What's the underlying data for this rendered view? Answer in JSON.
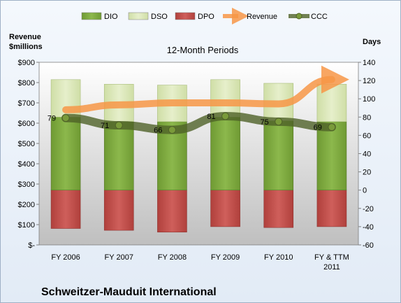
{
  "chart_data": {
    "type": "bar",
    "subtitle": "12-Month Periods",
    "company": "Schweitzer-Mauduit International",
    "categories": [
      [
        "FY 2006"
      ],
      [
        "FY 2007"
      ],
      [
        "FY 2008"
      ],
      [
        "FY 2009"
      ],
      [
        "FY 2010"
      ],
      [
        "FY & TTM",
        "2011"
      ]
    ],
    "left_axis": {
      "label": [
        "Revenue",
        "$millions"
      ],
      "ylim": [
        0,
        900
      ],
      "ticks": [
        0,
        100,
        200,
        300,
        400,
        500,
        600,
        700,
        800,
        900
      ],
      "tick_labels": [
        "$-",
        "$100",
        "$200",
        "$300",
        "$400",
        "$500",
        "$600",
        "$700",
        "$800",
        "$900"
      ]
    },
    "right_axis": {
      "label": "Days",
      "ylim": [
        -60,
        140
      ],
      "ticks": [
        -60,
        -40,
        -20,
        0,
        20,
        40,
        60,
        80,
        100,
        120,
        140
      ]
    },
    "series": [
      {
        "name": "DIO",
        "axis": "right",
        "values": [
          80,
          75,
          75,
          80,
          76,
          75
        ],
        "color": "#76a33a"
      },
      {
        "name": "DSO",
        "axis": "right",
        "values": [
          41,
          41,
          40,
          41,
          41,
          41
        ],
        "color": "#d7e4b3"
      },
      {
        "name": "DPO",
        "axis": "right",
        "values": [
          -42,
          -44,
          -46,
          -40,
          -41,
          -40
        ],
        "color": "#c0504d"
      },
      {
        "name": "Revenue",
        "axis": "left",
        "values": [
          666,
          690,
          700,
          700,
          695,
          815
        ],
        "color": "#f79646"
      },
      {
        "name": "CCC",
        "axis": "right",
        "values": [
          79,
          71,
          66,
          81,
          75,
          69
        ],
        "color": "#4f6228"
      }
    ],
    "grid": false,
    "legend_position": "top"
  }
}
